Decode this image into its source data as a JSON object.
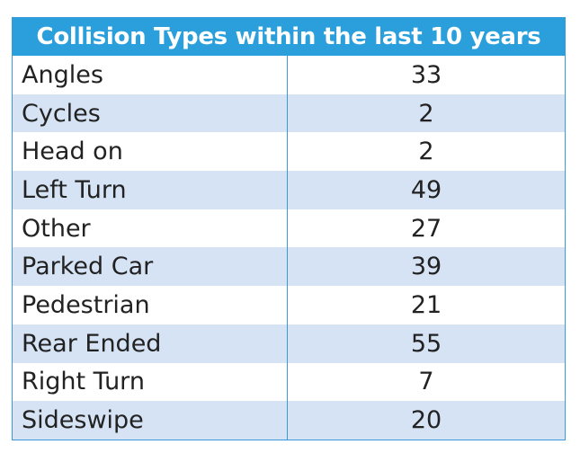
{
  "table": {
    "title": "Collision Types within the last 10 years",
    "rows": [
      [
        "Angles",
        33
      ],
      [
        "Cycles",
        2
      ],
      [
        "Head on",
        2
      ],
      [
        "Left Turn",
        49
      ],
      [
        "Other",
        27
      ],
      [
        "Parked Car",
        39
      ],
      [
        "Pedestrian",
        21
      ],
      [
        "Rear Ended",
        55
      ],
      [
        "Right Turn",
        7
      ],
      [
        "Sideswipe",
        20
      ]
    ]
  }
}
